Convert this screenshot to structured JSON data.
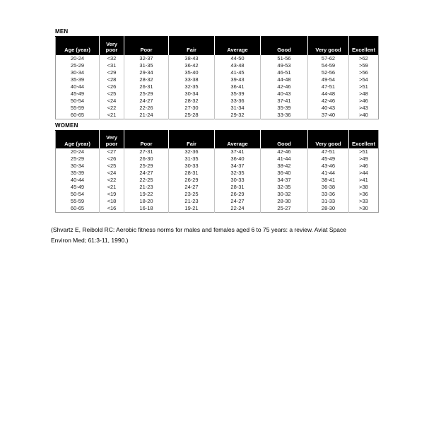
{
  "columns": [
    "Age (year)",
    "Very poor",
    "Poor",
    "Fair",
    "Average",
    "Good",
    "Very good",
    "Excellent"
  ],
  "men_table": {
    "title": "MEN",
    "rows": [
      [
        "20-24",
        "<32",
        "32-37",
        "38-43",
        "44-50",
        "51-56",
        "57-62",
        ">62"
      ],
      [
        "25-29",
        "<31",
        "31-35",
        "36-42",
        "43-48",
        "49-53",
        "54-59",
        ">59"
      ],
      [
        "30-34",
        "<29",
        "29-34",
        "35-40",
        "41-45",
        "46-51",
        "52-56",
        ">56"
      ],
      [
        "35-39",
        "<28",
        "28-32",
        "33-38",
        "39-43",
        "44-48",
        "49-54",
        ">54"
      ],
      [
        "40-44",
        "<26",
        "26-31",
        "32-35",
        "36-41",
        "42-46",
        "47-51",
        ">51"
      ],
      [
        "45-49",
        "<25",
        "25-29",
        "30-34",
        "35-39",
        "40-43",
        "44-48",
        ">48"
      ],
      [
        "50-54",
        "<24",
        "24-27",
        "28-32",
        "33-36",
        "37-41",
        "42-46",
        ">46"
      ],
      [
        "55-59",
        "<22",
        "22-26",
        "27-30",
        "31-34",
        "35-39",
        "40-43",
        ">43"
      ],
      [
        "60-65",
        "<21",
        "21-24",
        "25-28",
        "29-32",
        "33-36",
        "37-40",
        ">40"
      ]
    ]
  },
  "women_table": {
    "title": "WOMEN",
    "rows": [
      [
        "20-24",
        "<27",
        "27-31",
        "32-36",
        "37-41",
        "42-46",
        "47-51",
        ">51"
      ],
      [
        "25-29",
        "<26",
        "26-30",
        "31-35",
        "36-40",
        "41-44",
        "45-49",
        ">49"
      ],
      [
        "30-34",
        "<25",
        "25-29",
        "30-33",
        "34-37",
        "38-42",
        "43-46",
        ">46"
      ],
      [
        "35-39",
        "<24",
        "24-27",
        "28-31",
        "32-35",
        "36-40",
        "41-44",
        ">44"
      ],
      [
        "40-44",
        "<22",
        "22-25",
        "26-29",
        "30-33",
        "34-37",
        "38-41",
        ">41"
      ],
      [
        "45-49",
        "<21",
        "21-23",
        "24-27",
        "28-31",
        "32-35",
        "36-38",
        ">38"
      ],
      [
        "50-54",
        "<19",
        "19-22",
        "23-25",
        "26-29",
        "30-32",
        "33-36",
        ">36"
      ],
      [
        "55-59",
        "<18",
        "18-20",
        "21-23",
        "24-27",
        "28-30",
        "31-33",
        ">33"
      ],
      [
        "60-65",
        "<16",
        "16-18",
        "19-21",
        "22-24",
        "25-27",
        "28-30",
        ">30"
      ]
    ]
  },
  "citation": {
    "line1": "(Shvartz E, Reibold RC: Aerobic fitness norms for males and females aged 6 to 75 years: a review. Aviat Space",
    "line2": "Environ Med; 61:3-11, 1990.)"
  },
  "colors": {
    "page_bg": "#ffffff",
    "header_bg": "#000000",
    "header_text": "#ffffff",
    "body_text": "#1c1c1c",
    "table_border": "#9e9e9e",
    "cell_divider": "#c4c4c4"
  }
}
